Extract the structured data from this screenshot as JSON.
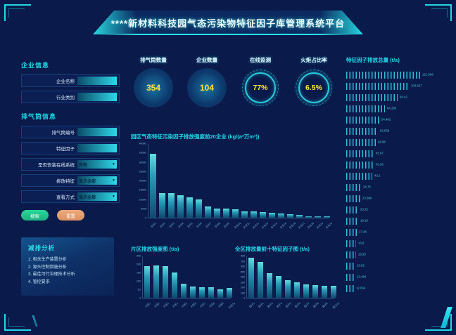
{
  "header": {
    "title": "****新材料科技园气态污染物特征因子库管理系统平台"
  },
  "sidebar": {
    "company_section_title": "企业信息",
    "company_fields": [
      {
        "label": "企业名称",
        "type": "input",
        "value": ""
      },
      {
        "label": "行业类别",
        "type": "input",
        "value": ""
      }
    ],
    "stack_section_title": "排气筒信息",
    "stack_fields": [
      {
        "label": "排气筒编号",
        "type": "input",
        "value": ""
      },
      {
        "label": "特征因子",
        "type": "input",
        "value": ""
      },
      {
        "label": "是否安装在线系统",
        "type": "select",
        "value": "所有"
      },
      {
        "label": "排放特征",
        "type": "select",
        "value": "显示全部"
      },
      {
        "label": "查看方式",
        "type": "select",
        "value": "显示全部"
      }
    ],
    "search_label": "搜索",
    "reset_label": "重置",
    "analysis": {
      "title": "减排分析",
      "items": [
        "相关生产装置分析",
        "源头控制措施分析",
        "最佳可行治理技术分析",
        "管控要求"
      ]
    }
  },
  "stats": [
    {
      "label": "排气筒数量",
      "value": "354",
      "type": "circle"
    },
    {
      "label": "企业数量",
      "value": "104",
      "type": "circle"
    },
    {
      "label": "在线监测",
      "value": "77%",
      "type": "ring"
    },
    {
      "label": "火炬占比率",
      "value": "6.5%",
      "type": "ring"
    }
  ],
  "colors": {
    "accent": "#1fd8e8",
    "number": "#ffe53d",
    "search_button": "#22c688",
    "reset_button": "#e0996b"
  },
  "chart_data": [
    {
      "type": "bar",
      "title": "园区气态特征污染因子排放强度前20企业 (kg/(a*万m²))",
      "categories": [
        "企业1",
        "企业2",
        "企业3",
        "企业4",
        "企业5",
        "企业6",
        "企业7",
        "企业8",
        "企业9",
        "企业10",
        "企业11",
        "企业12",
        "企业13",
        "企业14",
        "企业15",
        "企业16",
        "企业17",
        "企业18",
        "企业19",
        "企业20"
      ],
      "values": [
        35000,
        13500,
        13400,
        12500,
        11200,
        10000,
        6200,
        5100,
        4900,
        4600,
        3400,
        3300,
        3100,
        2800,
        2500,
        1800,
        1500,
        900,
        800,
        700
      ],
      "ylim": [
        0,
        40000
      ],
      "yticks": [
        0,
        5000,
        10000,
        15000,
        20000,
        25000,
        30000,
        35000,
        40000
      ],
      "legend": false,
      "grid": false
    },
    {
      "type": "bar",
      "title": "片区排放强度图 (t/a)",
      "categories": [
        "片区1",
        "片区2",
        "片区3",
        "片区4",
        "片区5",
        "片区6",
        "片区7",
        "片区8",
        "片区9",
        "片区10"
      ],
      "values": [
        195,
        197,
        193,
        157,
        88,
        70,
        65,
        65,
        50,
        62
      ],
      "ylim": [
        0,
        250
      ],
      "yticks": [
        0,
        50,
        100,
        150,
        200,
        250
      ],
      "legend": false,
      "grid": false
    },
    {
      "type": "bar",
      "title": "全区排放量前十特征因子图 (t/a)",
      "categories": [
        "因子1",
        "因子2",
        "因子3",
        "因子4",
        "因子5",
        "因子6",
        "因子7",
        "因子8",
        "因子9",
        "因子10"
      ],
      "values": [
        780,
        700,
        480,
        430,
        340,
        300,
        260,
        250,
        240,
        230
      ],
      "ylim": [
        0,
        800
      ],
      "yticks": [
        0,
        100,
        200,
        300,
        400,
        500,
        600,
        700,
        800
      ],
      "legend": false,
      "grid": false
    },
    {
      "type": "bar-horizontal",
      "title": "特征因子排放总量 (t/a)",
      "values": [
        121.566,
        103.527,
        84.42,
        64.286,
        54.462,
        52.639,
        48.68,
        45.67,
        45.28,
        43.2,
        24.75,
        23.586,
        20.25,
        19.18,
        17.48,
        16.8,
        15.93,
        13.62,
        13.484,
        12.634
      ],
      "xlim": [
        0,
        130
      ],
      "legend": false,
      "grid": false
    }
  ]
}
